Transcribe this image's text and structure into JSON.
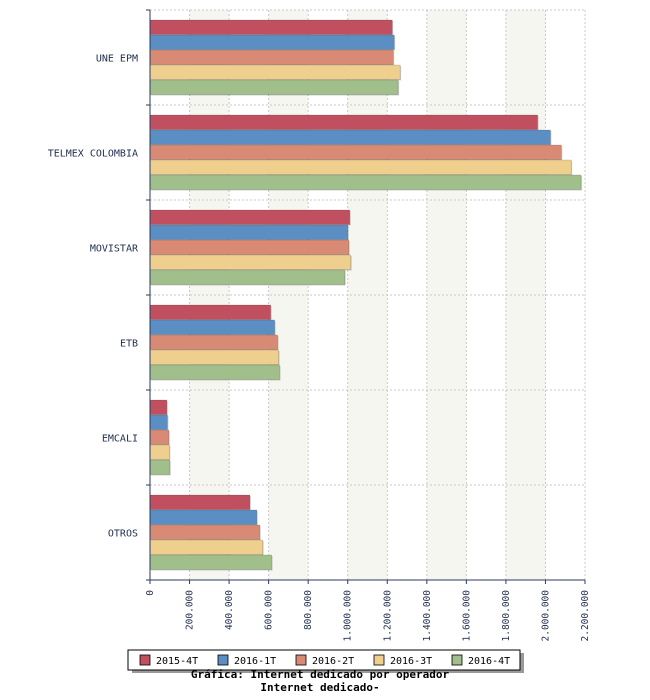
{
  "chart_data": {
    "type": "bar",
    "orientation": "horizontal",
    "categories": [
      "UNE EPM",
      "TELMEX COLOMBIA",
      "MOVISTAR",
      "ETB",
      "EMCALI",
      "OTROS"
    ],
    "series": [
      {
        "name": "2015-4T",
        "color": "#c0505f",
        "values": [
          1225000,
          1960000,
          1010000,
          610000,
          85000,
          505000
        ]
      },
      {
        "name": "2016-1T",
        "color": "#5b8fc4",
        "values": [
          1235000,
          2025000,
          1000000,
          630000,
          88000,
          540000
        ]
      },
      {
        "name": "2016-2T",
        "color": "#d98a74",
        "values": [
          1230000,
          2080000,
          1005000,
          645000,
          95000,
          555000
        ]
      },
      {
        "name": "2016-3T",
        "color": "#eecf8e",
        "values": [
          1265000,
          2130000,
          1015000,
          650000,
          98000,
          570000
        ]
      },
      {
        "name": "2016-4T",
        "color": "#a1bf8a",
        "values": [
          1255000,
          2180000,
          985000,
          655000,
          100000,
          615000
        ]
      }
    ],
    "x_ticks": [
      "0",
      "200.000",
      "400.000",
      "600.000",
      "800.000",
      "1.000.000",
      "1.200.000",
      "1.400.000",
      "1.600.000",
      "1.800.000",
      "2.000.000",
      "2.200.000"
    ],
    "xlim": [
      0,
      2200000
    ],
    "grid": true,
    "legend_position": "bottom",
    "caption_lines": [
      "Gráfica: Internet dedicado por operador",
      "Internet dedicado-"
    ]
  }
}
